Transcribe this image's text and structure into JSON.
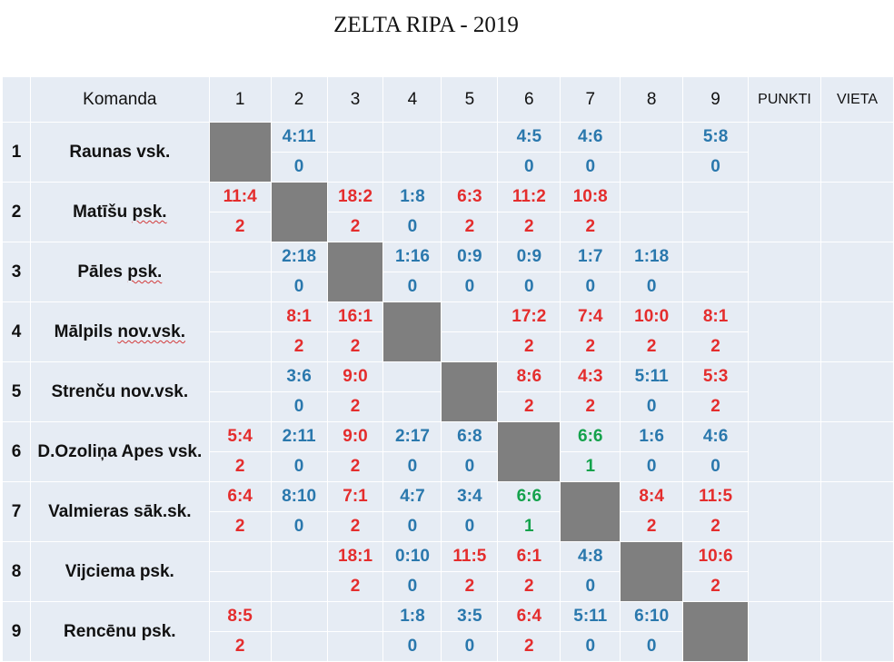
{
  "title": "ZELTA RIPA - 2019",
  "header": {
    "team_label": "Komanda",
    "columns": [
      "1",
      "2",
      "3",
      "4",
      "5",
      "6",
      "7",
      "8",
      "9"
    ],
    "points_label": "PUNKTI",
    "place_label": "VIETA"
  },
  "teams": [
    {
      "num": "1",
      "name": "Raunas vsk.",
      "underline": "",
      "cells": [
        null,
        {
          "s": "4:11",
          "p": "0"
        },
        {
          "s": "",
          "p": ""
        },
        {
          "s": "",
          "p": ""
        },
        {
          "s": "",
          "p": ""
        },
        {
          "s": "4:5",
          "p": "0"
        },
        {
          "s": "4:6",
          "p": "0"
        },
        {
          "s": "",
          "p": ""
        },
        {
          "s": "5:8",
          "p": "0"
        }
      ],
      "points": "",
      "place": ""
    },
    {
      "num": "2",
      "name": "Matīšu psk.",
      "underline": "psk.",
      "cells": [
        {
          "s": "11:4",
          "p": "2"
        },
        null,
        {
          "s": "18:2",
          "p": "2"
        },
        {
          "s": "1:8",
          "p": "0"
        },
        {
          "s": "6:3",
          "p": "2"
        },
        {
          "s": "11:2",
          "p": "2"
        },
        {
          "s": "10:8",
          "p": "2"
        },
        {
          "s": "",
          "p": ""
        },
        {
          "s": "",
          "p": ""
        }
      ],
      "points": "",
      "place": ""
    },
    {
      "num": "3",
      "name": "Pāles psk.",
      "underline": "psk.",
      "cells": [
        {
          "s": "",
          "p": ""
        },
        {
          "s": "2:18",
          "p": "0"
        },
        null,
        {
          "s": "1:16",
          "p": "0"
        },
        {
          "s": "0:9",
          "p": "0"
        },
        {
          "s": "0:9",
          "p": "0"
        },
        {
          "s": "1:7",
          "p": "0"
        },
        {
          "s": "1:18",
          "p": "0"
        },
        {
          "s": "",
          "p": ""
        }
      ],
      "points": "",
      "place": ""
    },
    {
      "num": "4",
      "name": "Mālpils nov.vsk.",
      "underline": "nov.vsk.",
      "cells": [
        {
          "s": "",
          "p": ""
        },
        {
          "s": "8:1",
          "p": "2"
        },
        {
          "s": "16:1",
          "p": "2"
        },
        null,
        {
          "s": "",
          "p": ""
        },
        {
          "s": "17:2",
          "p": "2"
        },
        {
          "s": "7:4",
          "p": "2"
        },
        {
          "s": "10:0",
          "p": "2"
        },
        {
          "s": "8:1",
          "p": "2"
        }
      ],
      "points": "",
      "place": ""
    },
    {
      "num": "5",
      "name": "Strenču nov.vsk.",
      "underline": "",
      "cells": [
        {
          "s": "",
          "p": ""
        },
        {
          "s": "3:6",
          "p": "0"
        },
        {
          "s": "9:0",
          "p": "2"
        },
        {
          "s": "",
          "p": ""
        },
        null,
        {
          "s": "8:6",
          "p": "2"
        },
        {
          "s": "4:3",
          "p": "2"
        },
        {
          "s": "5:11",
          "p": "0"
        },
        {
          "s": "5:3",
          "p": "2"
        }
      ],
      "points": "",
      "place": ""
    },
    {
      "num": "6",
      "name": "D.Ozoliņa Apes vsk.",
      "underline": "",
      "cells": [
        {
          "s": "5:4",
          "p": "2"
        },
        {
          "s": "2:11",
          "p": "0"
        },
        {
          "s": "9:0",
          "p": "2"
        },
        {
          "s": "2:17",
          "p": "0"
        },
        {
          "s": "6:8",
          "p": "0"
        },
        null,
        {
          "s": "6:6",
          "p": "1"
        },
        {
          "s": "1:6",
          "p": "0"
        },
        {
          "s": "4:6",
          "p": "0"
        }
      ],
      "points": "",
      "place": ""
    },
    {
      "num": "7",
      "name": "Valmieras sāk.sk.",
      "underline": "",
      "cells": [
        {
          "s": "6:4",
          "p": "2"
        },
        {
          "s": "8:10",
          "p": "0"
        },
        {
          "s": "7:1",
          "p": "2"
        },
        {
          "s": "4:7",
          "p": "0"
        },
        {
          "s": "3:4",
          "p": "0"
        },
        {
          "s": "6:6",
          "p": "1"
        },
        null,
        {
          "s": "8:4",
          "p": "2"
        },
        {
          "s": "11:5",
          "p": "2"
        }
      ],
      "points": "",
      "place": ""
    },
    {
      "num": "8",
      "name": "Vijciema psk.",
      "underline": "",
      "cells": [
        {
          "s": "",
          "p": ""
        },
        {
          "s": "",
          "p": ""
        },
        {
          "s": "18:1",
          "p": "2"
        },
        {
          "s": "0:10",
          "p": "0"
        },
        {
          "s": "11:5",
          "p": "2"
        },
        {
          "s": "6:1",
          "p": "2"
        },
        {
          "s": "4:8",
          "p": "0"
        },
        null,
        {
          "s": "10:6",
          "p": "2"
        }
      ],
      "points": "",
      "place": ""
    },
    {
      "num": "9",
      "name": "Rencēnu psk.",
      "underline": "",
      "cells": [
        {
          "s": "8:5",
          "p": "2"
        },
        {
          "s": "",
          "p": ""
        },
        {
          "s": "",
          "p": ""
        },
        {
          "s": "1:8",
          "p": "0"
        },
        {
          "s": "3:5",
          "p": "0"
        },
        {
          "s": "6:4",
          "p": "2"
        },
        {
          "s": "5:11",
          "p": "0"
        },
        {
          "s": "6:10",
          "p": "0"
        },
        null
      ],
      "points": "",
      "place": ""
    }
  ],
  "colors": {
    "win": "#e42d2d",
    "loss": "#2a78ad",
    "draw": "#14a24c",
    "diagonal": "#7f7f7f",
    "cell_bg": "#e6ecf4"
  }
}
